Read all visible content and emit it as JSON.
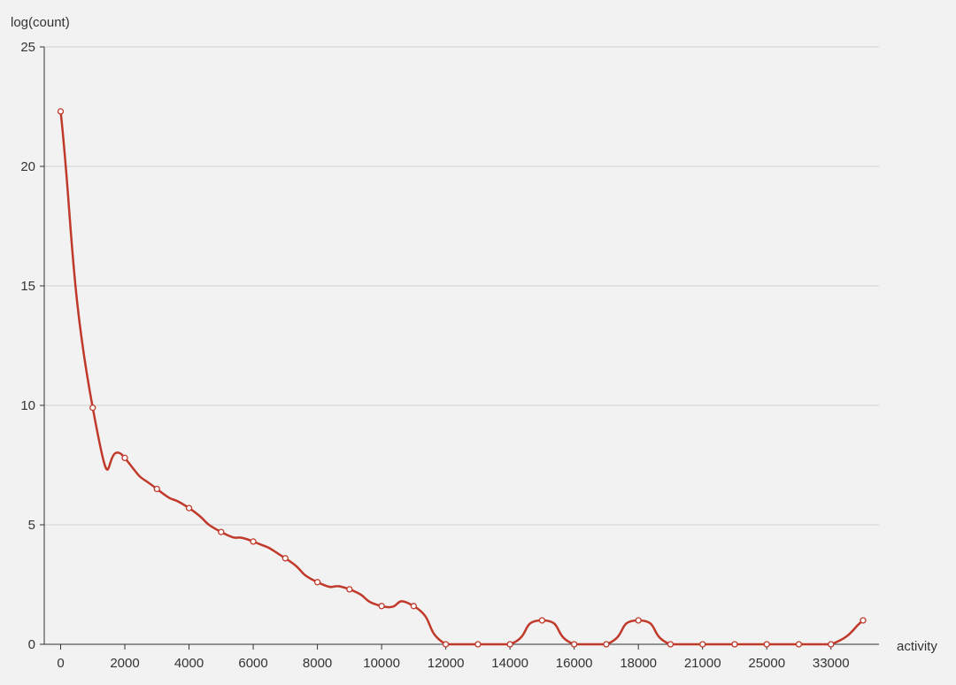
{
  "chart_data": {
    "type": "line",
    "smooth": true,
    "title": "",
    "xlabel": "activity",
    "ylabel": "log(count)",
    "ylim": [
      0,
      25
    ],
    "yticks": [
      0,
      5,
      10,
      15,
      20,
      25
    ],
    "x_tick_labels": [
      "0",
      "2000",
      "4000",
      "6000",
      "8000",
      "10000",
      "12000",
      "14000",
      "16000",
      "18000",
      "21000",
      "25000",
      "33000"
    ],
    "grid": true,
    "colors": {
      "line": "#c0392b",
      "grid": "#d0d0d0",
      "axis": "#333333",
      "background": "#f2f2f2",
      "point_fill": "#ffffff"
    },
    "series": [
      {
        "values": [
          22.3,
          9.9,
          7.8,
          6.5,
          5.7,
          4.7,
          4.3,
          3.6,
          2.6,
          2.3,
          1.6,
          1.6,
          0,
          0,
          0,
          1.0,
          0,
          0,
          1.0,
          0,
          0,
          0,
          0,
          0,
          0,
          1.0
        ]
      }
    ]
  }
}
